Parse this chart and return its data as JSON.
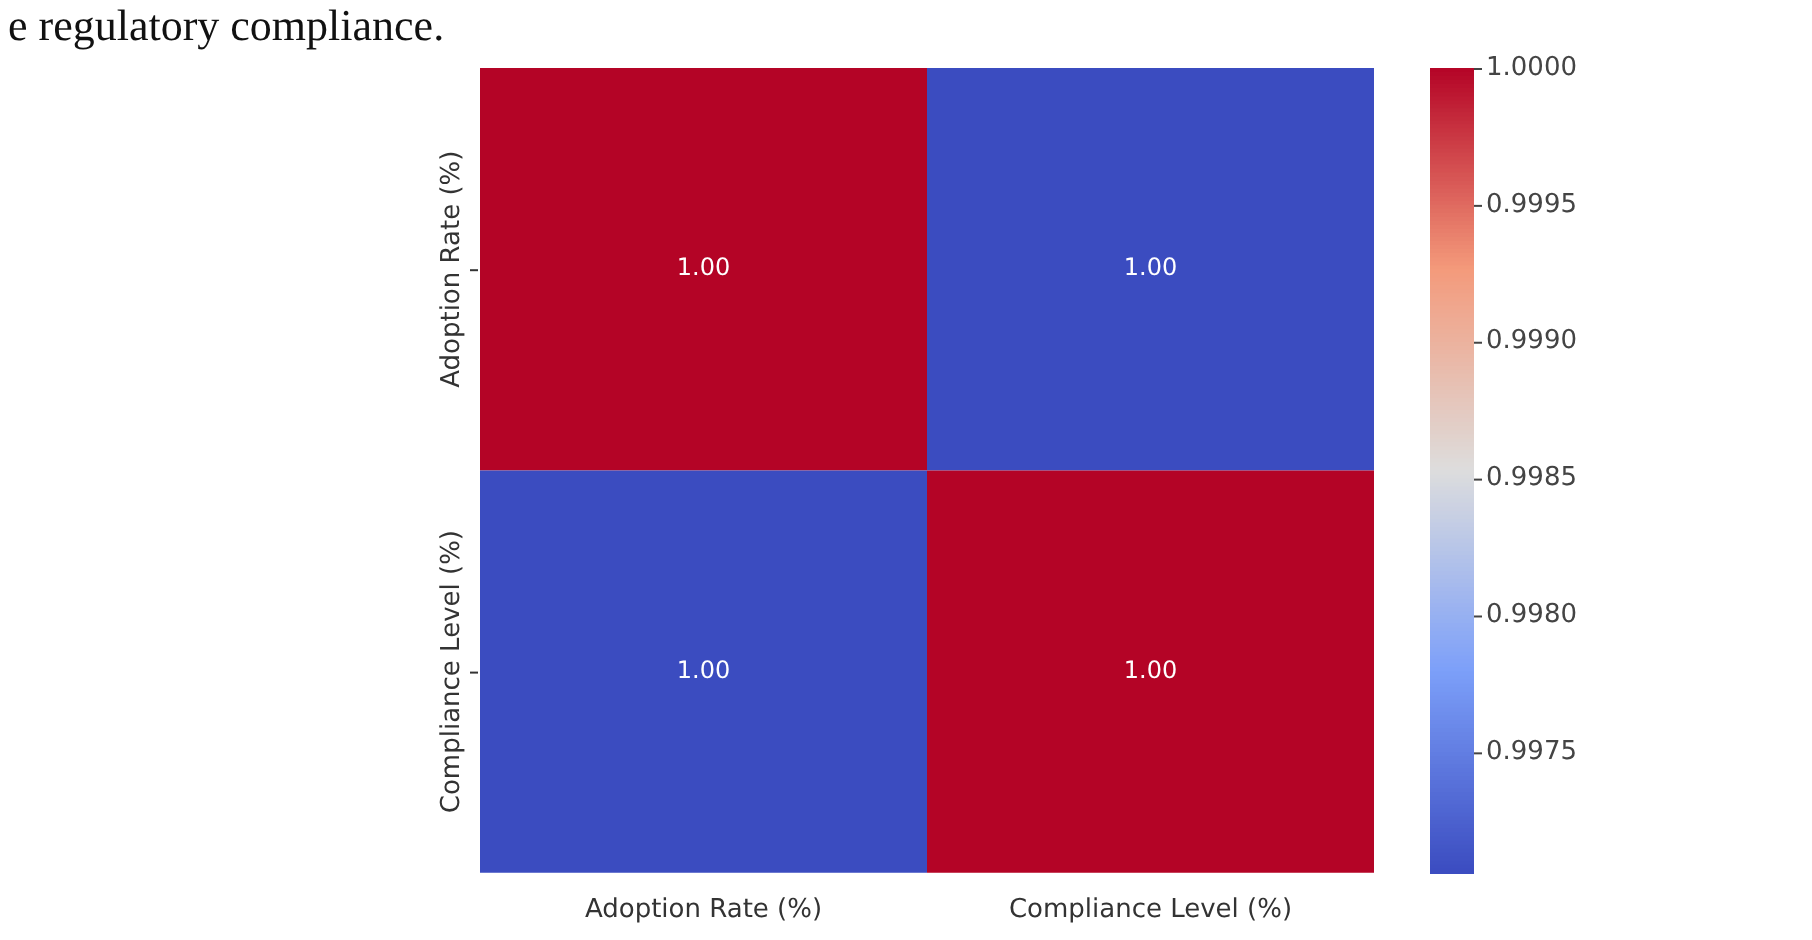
{
  "chart_data": {
    "type": "heatmap",
    "categories": [
      "Adoption Rate (%)",
      "Compliance Level (%)"
    ],
    "y_categories": [
      "Adoption Rate (%)",
      "Compliance Level (%)"
    ],
    "cells": [
      [
        1.0,
        0.99706
      ],
      [
        0.99706,
        1.0
      ]
    ],
    "cell_labels": [
      [
        "1.00",
        "1.00"
      ],
      [
        "1.00",
        "1.00"
      ]
    ],
    "clim": [
      0.99706,
      1.0
    ],
    "cticks": [
      0.9975,
      {
        "value": 0.998,
        "label": "0.9980"
      },
      0.9985,
      {
        "value": 0.999,
        "label": "0.9990"
      },
      0.9995,
      {
        "value": 1.0,
        "label": "1.0000"
      }
    ],
    "annotations": [
      "e regulatory compliance."
    ]
  }
}
